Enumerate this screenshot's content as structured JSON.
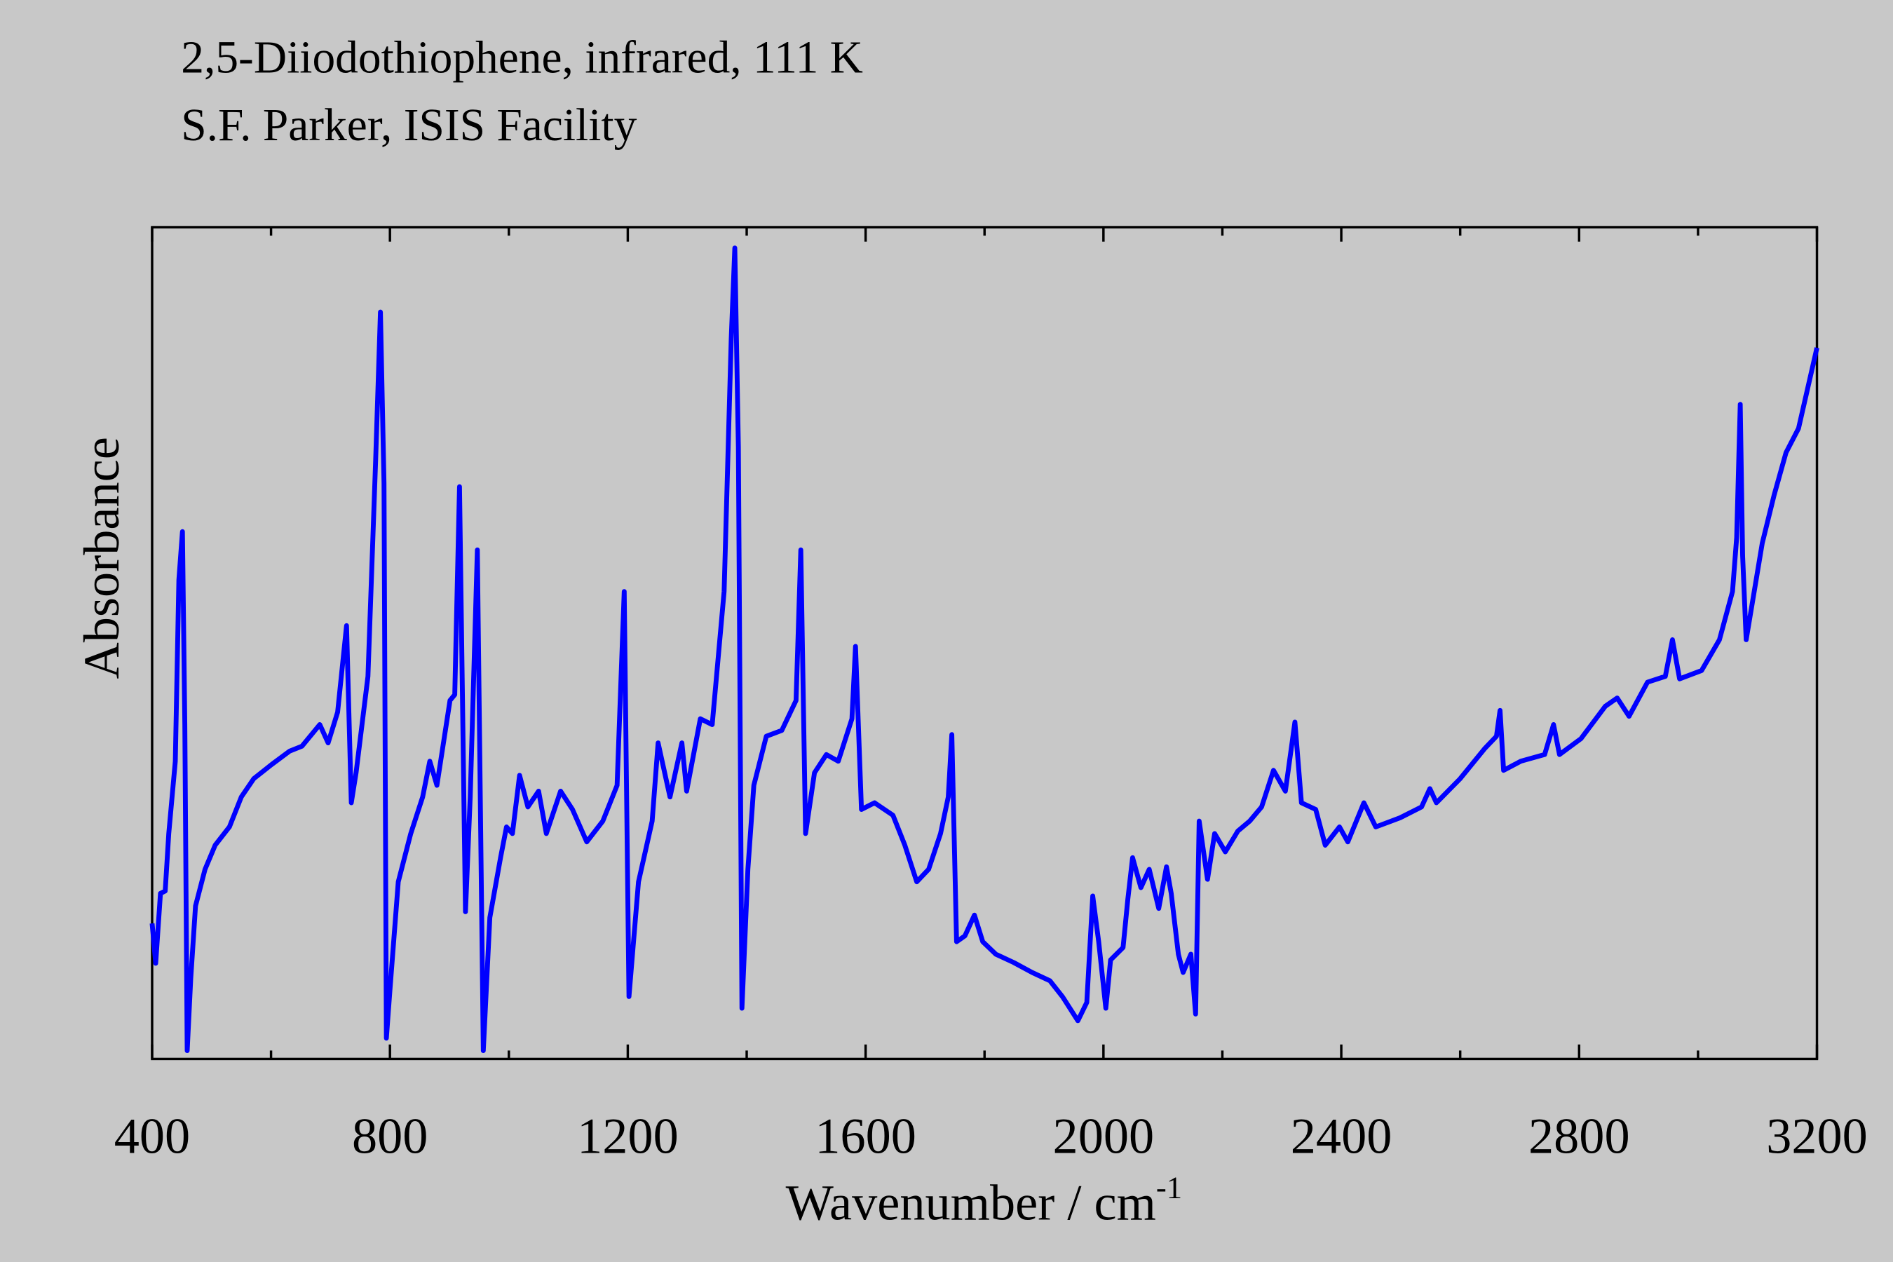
{
  "chart_data": {
    "type": "line",
    "title": "2,5-Diiodothiophene, infrared, 111 K",
    "subtitle": "S.F. Parker, ISIS Facility",
    "xlabel": "Wavenumber / cm",
    "xlabel_superscript": "-1",
    "ylabel": "Absorbance",
    "color": "#0000ff",
    "xlim": [
      400,
      3200
    ],
    "xticks": [
      400,
      800,
      1200,
      1600,
      2000,
      2400,
      2800,
      3200
    ],
    "xminorticks": [
      600,
      1000,
      1400,
      1800,
      2200,
      2600,
      3000
    ],
    "ylim": [
      0,
      100
    ],
    "x": [
      400,
      406,
      414,
      422,
      428,
      439,
      445,
      451,
      455,
      459,
      465,
      473,
      489,
      506,
      530,
      550,
      571,
      601,
      631,
      652,
      682,
      696,
      712,
      727,
      735,
      743,
      763,
      776,
      784,
      790,
      794,
      800,
      814,
      835,
      855,
      867,
      879,
      901,
      909,
      917,
      927,
      935,
      947,
      957,
      968,
      986,
      996,
      1006,
      1018,
      1032,
      1050,
      1063,
      1087,
      1107,
      1131,
      1158,
      1182,
      1194,
      1202,
      1218,
      1241,
      1251,
      1271,
      1291,
      1299,
      1322,
      1342,
      1362,
      1374,
      1380,
      1386,
      1392,
      1402,
      1412,
      1433,
      1459,
      1483,
      1491,
      1499,
      1514,
      1534,
      1554,
      1577,
      1583,
      1593,
      1615,
      1646,
      1666,
      1686,
      1706,
      1726,
      1739,
      1745,
      1753,
      1767,
      1783,
      1797,
      1819,
      1849,
      1880,
      1910,
      1931,
      1957,
      1972,
      1982,
      1992,
      2004,
      2012,
      2033,
      2041,
      2049,
      2063,
      2077,
      2093,
      2106,
      2114,
      2126,
      2134,
      2147,
      2155,
      2161,
      2175,
      2187,
      2205,
      2226,
      2246,
      2266,
      2286,
      2306,
      2322,
      2333,
      2357,
      2373,
      2397,
      2411,
      2438,
      2458,
      2499,
      2535,
      2549,
      2560,
      2600,
      2641,
      2661,
      2667,
      2673,
      2702,
      2742,
      2757,
      2767,
      2803,
      2844,
      2864,
      2884,
      2915,
      2945,
      2957,
      2969,
      3006,
      3036,
      3058,
      3065,
      3071,
      3075,
      3081,
      3108,
      3128,
      3148,
      3169,
      3200
    ],
    "values": [
      16.3,
      11.5,
      19.9,
      20.2,
      27.1,
      35.8,
      57.6,
      63.4,
      40.2,
      1.0,
      9.7,
      18.4,
      22.8,
      25.7,
      27.9,
      31.5,
      33.7,
      35.4,
      37.0,
      37.6,
      40.2,
      38.0,
      41.7,
      52.1,
      30.8,
      34.4,
      46.0,
      72.1,
      89.8,
      69.2,
      2.5,
      8.3,
      21.3,
      27.1,
      31.5,
      35.8,
      32.9,
      43.1,
      43.8,
      68.8,
      17.7,
      31.5,
      61.2,
      1.0,
      17.0,
      24.2,
      27.9,
      27.1,
      34.1,
      30.3,
      32.2,
      27.1,
      32.2,
      30.0,
      26.1,
      28.6,
      32.9,
      56.2,
      7.5,
      21.3,
      28.6,
      38.0,
      31.5,
      38.0,
      32.2,
      40.9,
      40.2,
      56.2,
      86.6,
      97.5,
      73.6,
      6.1,
      22.8,
      32.9,
      38.8,
      39.5,
      43.1,
      61.2,
      27.1,
      34.4,
      36.6,
      35.8,
      40.9,
      49.6,
      30.0,
      30.8,
      29.3,
      25.7,
      21.3,
      22.8,
      27.1,
      31.5,
      39.0,
      14.1,
      14.8,
      17.3,
      14.1,
      12.6,
      11.6,
      10.4,
      9.4,
      7.5,
      4.6,
      6.8,
      19.6,
      14.1,
      6.1,
      11.9,
      13.4,
      19.2,
      24.2,
      20.6,
      22.8,
      18.1,
      23.1,
      19.9,
      12.6,
      10.4,
      12.6,
      5.4,
      28.6,
      21.6,
      27.1,
      24.9,
      27.4,
      28.6,
      30.3,
      34.7,
      32.2,
      40.5,
      30.8,
      30.0,
      25.7,
      27.9,
      26.1,
      30.8,
      27.9,
      29.0,
      30.3,
      32.5,
      30.8,
      33.7,
      37.3,
      38.8,
      41.9,
      34.7,
      35.8,
      36.6,
      40.2,
      36.6,
      38.5,
      42.4,
      43.4,
      41.2,
      45.3,
      46.0,
      50.4,
      45.7,
      46.7,
      50.4,
      56.2,
      62.7,
      78.7,
      60.5,
      50.4,
      62.0,
      67.8,
      72.9,
      75.8,
      85.5
    ]
  }
}
